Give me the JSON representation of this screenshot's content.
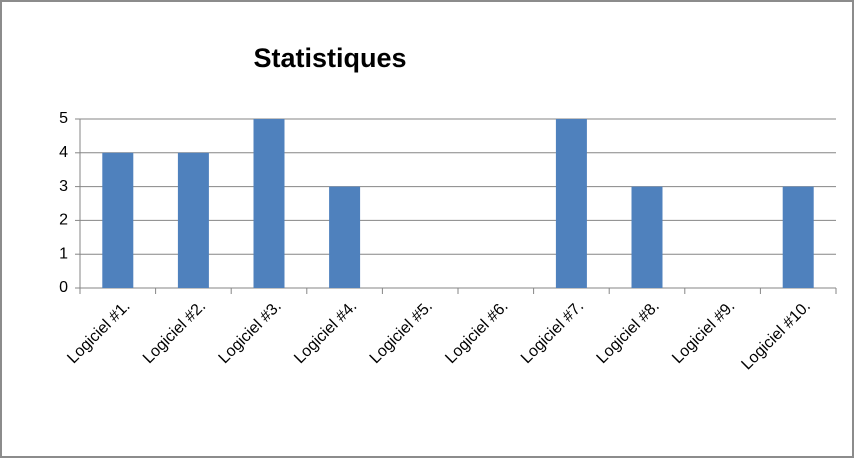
{
  "chart_data": {
    "type": "bar",
    "title": "Statistiques",
    "categories": [
      "Logiciel #1.",
      "Logiciel #2.",
      "Logiciel #3.",
      "Logiciel #4.",
      "Logiciel #5.",
      "Logiciel #6.",
      "Logiciel #7.",
      "Logiciel #8.",
      "Logiciel #9.",
      "Logiciel #10."
    ],
    "values": [
      4,
      4,
      5,
      3,
      0,
      0,
      5,
      3,
      0,
      3
    ],
    "color": "#4f81bd",
    "ylim": [
      0,
      5
    ],
    "yticks": [
      0,
      1,
      2,
      3,
      4,
      5
    ],
    "grid": true
  }
}
